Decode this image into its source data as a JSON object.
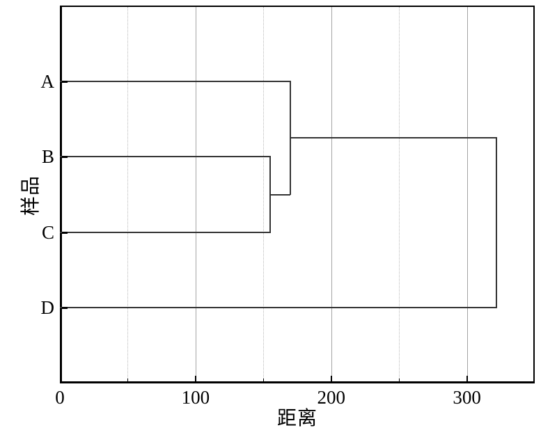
{
  "chart_data": {
    "type": "dendrogram",
    "orientation": "horizontal",
    "title": "",
    "xlabel": "距离",
    "ylabel": "样品",
    "leaves": [
      "A",
      "B",
      "C",
      "D"
    ],
    "merges": [
      {
        "id": "n1",
        "children": [
          "B",
          "C"
        ],
        "distance": 155
      },
      {
        "id": "n2",
        "children": [
          "A",
          "n1"
        ],
        "distance": 170
      },
      {
        "id": "n3",
        "children": [
          "n2",
          "D"
        ],
        "distance": 322
      }
    ],
    "xlim": [
      0,
      350
    ],
    "x_major_ticks": [
      0,
      100,
      200,
      300
    ],
    "x_minor_ticks": [
      50,
      150,
      250
    ],
    "x_tick_labels": [
      "0",
      "100",
      "200",
      "300"
    ],
    "grid": {
      "major_style": "solid",
      "minor_style": "dotted",
      "horizontal": "off"
    },
    "legend": "none",
    "colors": {
      "line": "#333333",
      "frame": "#000000",
      "grid_major": "#a3a3a3",
      "grid_minor": "#b9b9b9",
      "background": "#ffffff"
    }
  }
}
